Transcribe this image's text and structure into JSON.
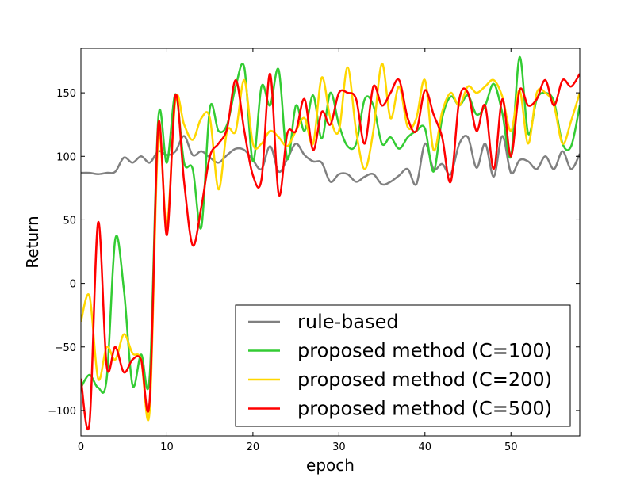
{
  "chart_data": {
    "type": "line",
    "xlabel": "epoch",
    "ylabel": "Return",
    "xlim": [
      0,
      58
    ],
    "ylim": [
      -120,
      185
    ],
    "xticks": [
      0,
      10,
      20,
      30,
      40,
      50
    ],
    "yticks": [
      -100,
      -50,
      0,
      50,
      100,
      150
    ],
    "xtick_labels": [
      "0",
      "10",
      "20",
      "30",
      "40",
      "50"
    ],
    "ytick_labels": [
      "−100",
      "−50",
      "0",
      "50",
      "100",
      "150"
    ],
    "grid": false,
    "legend_position": "lower-right",
    "series": [
      {
        "name": "rule-based",
        "color": "#808080",
        "x": [
          0,
          1,
          2,
          3,
          4,
          5,
          6,
          7,
          8,
          9,
          10,
          11,
          12,
          13,
          14,
          15,
          16,
          17,
          18,
          19,
          20,
          21,
          22,
          23,
          24,
          25,
          26,
          27,
          28,
          29,
          30,
          31,
          32,
          33,
          34,
          35,
          36,
          37,
          38,
          39,
          40,
          41,
          42,
          43,
          44,
          45,
          46,
          47,
          48,
          49,
          50,
          51,
          52,
          53,
          54,
          55,
          56,
          57,
          58
        ],
        "y": [
          87,
          87,
          86,
          87,
          88,
          99,
          95,
          100,
          95,
          104,
          101,
          104,
          116,
          101,
          104,
          99,
          95,
          101,
          106,
          105,
          97,
          90,
          108,
          88,
          98,
          110,
          101,
          96,
          95,
          80,
          86,
          86,
          80,
          84,
          86,
          78,
          80,
          85,
          90,
          78,
          110,
          90,
          94,
          86,
          110,
          115,
          91,
          110,
          84,
          116,
          87,
          97,
          96,
          90,
          100,
          90,
          104,
          90,
          102
        ]
      },
      {
        "name": "proposed method (C=100)",
        "color": "#33cc33",
        "x": [
          0,
          1,
          2,
          3,
          4,
          5,
          6,
          7,
          8,
          9,
          10,
          11,
          12,
          13,
          14,
          15,
          16,
          17,
          18,
          19,
          20,
          21,
          22,
          23,
          24,
          25,
          26,
          27,
          28,
          29,
          30,
          31,
          32,
          33,
          34,
          35,
          36,
          37,
          38,
          39,
          40,
          41,
          42,
          43,
          44,
          45,
          46,
          47,
          48,
          49,
          50,
          51,
          52,
          53,
          54,
          55,
          56,
          57,
          58
        ],
        "y": [
          -82,
          -72,
          -82,
          -75,
          35,
          -5,
          -80,
          -56,
          -73,
          130,
          95,
          149,
          95,
          90,
          44,
          138,
          120,
          125,
          155,
          170,
          96,
          155,
          140,
          168,
          98,
          140,
          120,
          148,
          114,
          150,
          125,
          108,
          110,
          145,
          140,
          110,
          115,
          106,
          115,
          120,
          122,
          88,
          130,
          147,
          140,
          148,
          133,
          140,
          157,
          134,
          100,
          178,
          118,
          145,
          150,
          143,
          110,
          108,
          140
        ]
      },
      {
        "name": "proposed method (C=200)",
        "color": "#ffd700",
        "x": [
          0,
          1,
          2,
          3,
          4,
          5,
          6,
          7,
          8,
          9,
          10,
          11,
          12,
          13,
          14,
          15,
          16,
          17,
          18,
          19,
          20,
          21,
          22,
          23,
          24,
          25,
          26,
          27,
          28,
          29,
          30,
          31,
          32,
          33,
          34,
          35,
          36,
          37,
          38,
          39,
          40,
          41,
          42,
          43,
          44,
          45,
          46,
          47,
          48,
          49,
          50,
          51,
          52,
          53,
          54,
          55,
          56,
          57,
          58
        ],
        "y": [
          -30,
          -10,
          -75,
          -50,
          -60,
          -40,
          -55,
          -60,
          -100,
          115,
          45,
          145,
          125,
          113,
          130,
          130,
          74,
          120,
          120,
          160,
          110,
          110,
          120,
          115,
          108,
          120,
          130,
          110,
          162,
          130,
          120,
          170,
          120,
          90,
          120,
          173,
          130,
          155,
          123,
          130,
          160,
          105,
          135,
          150,
          140,
          155,
          150,
          155,
          160,
          147,
          120,
          152,
          110,
          150,
          150,
          140,
          110,
          128,
          150
        ]
      },
      {
        "name": "proposed method (C=500)",
        "color": "#ff0000",
        "x": [
          0,
          1,
          2,
          3,
          4,
          5,
          6,
          7,
          8,
          9,
          10,
          11,
          12,
          13,
          14,
          15,
          16,
          17,
          18,
          19,
          20,
          21,
          22,
          23,
          24,
          25,
          26,
          27,
          28,
          29,
          30,
          31,
          32,
          33,
          34,
          35,
          36,
          37,
          38,
          39,
          40,
          41,
          42,
          43,
          44,
          45,
          46,
          47,
          48,
          49,
          50,
          51,
          52,
          53,
          54,
          55,
          56,
          57,
          58
        ],
        "y": [
          -75,
          -110,
          48,
          -65,
          -50,
          -70,
          -60,
          -60,
          -92,
          125,
          38,
          148,
          80,
          30,
          60,
          100,
          110,
          122,
          160,
          120,
          85,
          82,
          165,
          70,
          118,
          120,
          145,
          105,
          135,
          125,
          150,
          150,
          145,
          110,
          155,
          140,
          150,
          160,
          130,
          120,
          152,
          133,
          115,
          80,
          145,
          150,
          120,
          140,
          90,
          145,
          100,
          152,
          140,
          145,
          160,
          140,
          160,
          155,
          165
        ]
      }
    ]
  }
}
